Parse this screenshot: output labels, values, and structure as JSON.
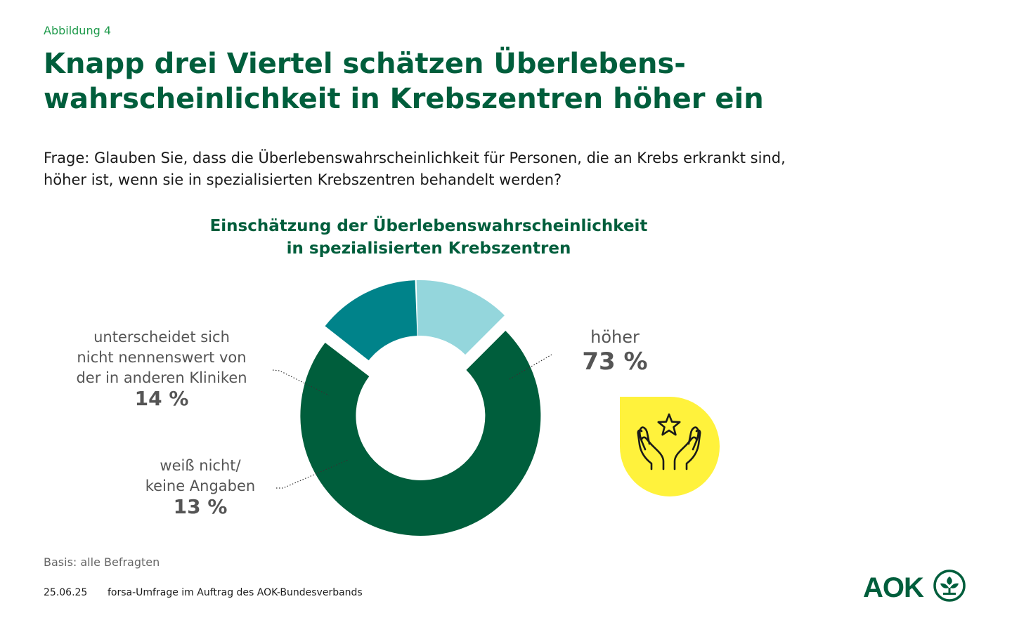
{
  "figure_label": "Abbildung 4",
  "headline": {
    "line1": "Knapp drei Viertel schätzen Überlebens-",
    "line2": "wahrscheinlichkeit in Krebszentren höher ein"
  },
  "question": {
    "line1": "Frage: Glauben Sie, dass die Überlebenswahrscheinlichkeit für Personen, die an Krebs erkrankt sind,",
    "line2": "höher ist, wenn sie in spezialisierten Krebszentren behandelt werden?"
  },
  "chart_data": {
    "type": "pie",
    "title_line1": "Einschätzung der Überlebenswahrscheinlichkeit",
    "title_line2": "in spezialisierten Krebszentren",
    "slices": [
      {
        "label": "höher",
        "value": 73,
        "value_label": "73 %",
        "color": "#005e3c"
      },
      {
        "label_lines": [
          "unterscheidet sich",
          "nicht nennenswert von",
          "der in anderen Kliniken"
        ],
        "value": 14,
        "value_label": "14 %",
        "color": "#00838a"
      },
      {
        "label_lines": [
          "weiß nicht/",
          "keine Angaben"
        ],
        "value": 13,
        "value_label": "13 %",
        "color": "#94d6dc"
      }
    ]
  },
  "icon": "hands-with-star-icon",
  "colors": {
    "brand_green": "#005e3c",
    "accent_yellow": "#fff23c",
    "label_green": "#1e9a4b"
  },
  "basis": "Basis: alle Befragten",
  "footer": {
    "date": "25.06.25",
    "source": "forsa-Umfrage im Auftrag des AOK-Bundesverbands",
    "logo_text": "AOK"
  }
}
